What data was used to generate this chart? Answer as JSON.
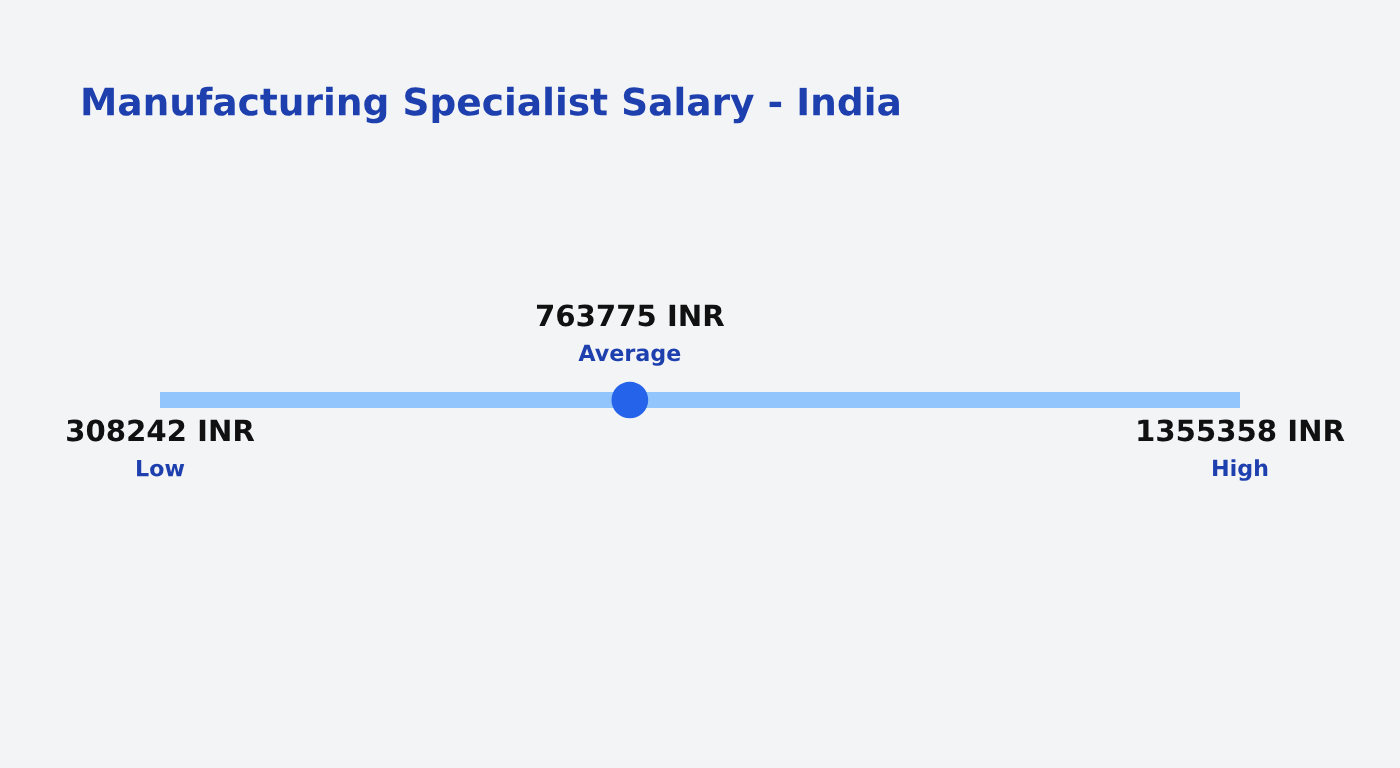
{
  "chart_data": {
    "type": "other",
    "title": "Manufacturing Specialist Salary - India",
    "categories": [
      "Low",
      "Average",
      "High"
    ],
    "values": [
      308242,
      763775,
      1355358
    ],
    "value_labels": [
      "308242 INR",
      "763775 INR",
      "1355358 INR"
    ],
    "colors": [
      "#93c5fd",
      "#2563eb",
      "#93c5fd"
    ]
  }
}
